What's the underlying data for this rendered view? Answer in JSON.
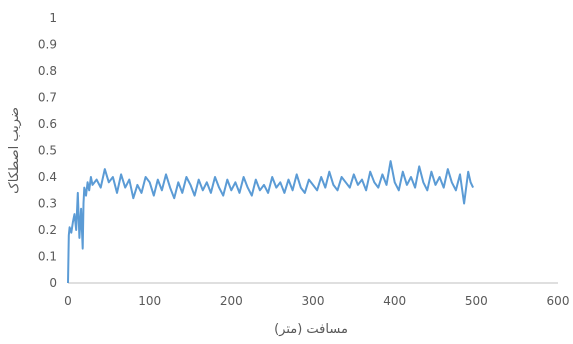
{
  "chart_data": {
    "type": "line",
    "title": "",
    "xlabel": "مسافت (متر)",
    "ylabel": "ضریب اصطکاک",
    "xlim": [
      0,
      600
    ],
    "ylim": [
      0,
      1
    ],
    "x_ticks": [
      "0",
      "100",
      "200",
      "300",
      "400",
      "500",
      "600"
    ],
    "y_ticks": [
      "0",
      "0.1",
      "0.2",
      "0.3",
      "0.4",
      "0.5",
      "0.6",
      "0.7",
      "0.8",
      "0.9",
      "1"
    ],
    "grid": false,
    "legend": "none",
    "series": [
      {
        "color": "#5B9BD5",
        "x": [
          0,
          1,
          2,
          4,
          6,
          8,
          10,
          12,
          14,
          16,
          18,
          19,
          20,
          22,
          24,
          26,
          28,
          30,
          35,
          40,
          45,
          50,
          55,
          60,
          65,
          70,
          75,
          80,
          85,
          90,
          95,
          100,
          105,
          110,
          115,
          120,
          125,
          130,
          135,
          140,
          145,
          150,
          155,
          160,
          165,
          170,
          175,
          180,
          185,
          190,
          195,
          200,
          205,
          210,
          215,
          220,
          225,
          230,
          235,
          240,
          245,
          250,
          255,
          260,
          265,
          270,
          275,
          280,
          285,
          290,
          295,
          300,
          305,
          310,
          315,
          320,
          325,
          330,
          335,
          340,
          345,
          350,
          355,
          360,
          365,
          370,
          375,
          380,
          385,
          390,
          395,
          400,
          405,
          410,
          415,
          420,
          425,
          430,
          435,
          440,
          445,
          450,
          455,
          460,
          465,
          470,
          475,
          480,
          485,
          490,
          493,
          496
        ],
        "y": [
          0.0,
          0.18,
          0.21,
          0.19,
          0.23,
          0.26,
          0.2,
          0.34,
          0.17,
          0.28,
          0.13,
          0.3,
          0.36,
          0.33,
          0.38,
          0.35,
          0.4,
          0.37,
          0.39,
          0.36,
          0.43,
          0.38,
          0.4,
          0.34,
          0.41,
          0.36,
          0.39,
          0.32,
          0.37,
          0.34,
          0.4,
          0.38,
          0.33,
          0.39,
          0.35,
          0.41,
          0.36,
          0.32,
          0.38,
          0.34,
          0.4,
          0.37,
          0.33,
          0.39,
          0.35,
          0.38,
          0.34,
          0.4,
          0.36,
          0.33,
          0.39,
          0.35,
          0.38,
          0.34,
          0.4,
          0.36,
          0.33,
          0.39,
          0.35,
          0.37,
          0.34,
          0.4,
          0.36,
          0.38,
          0.34,
          0.39,
          0.35,
          0.41,
          0.36,
          0.34,
          0.39,
          0.37,
          0.35,
          0.4,
          0.36,
          0.42,
          0.37,
          0.35,
          0.4,
          0.38,
          0.36,
          0.41,
          0.37,
          0.39,
          0.35,
          0.42,
          0.38,
          0.36,
          0.41,
          0.37,
          0.46,
          0.38,
          0.35,
          0.42,
          0.37,
          0.4,
          0.36,
          0.44,
          0.38,
          0.35,
          0.42,
          0.37,
          0.4,
          0.36,
          0.43,
          0.38,
          0.35,
          0.41,
          0.3,
          0.42,
          0.38,
          0.36
        ]
      }
    ]
  }
}
